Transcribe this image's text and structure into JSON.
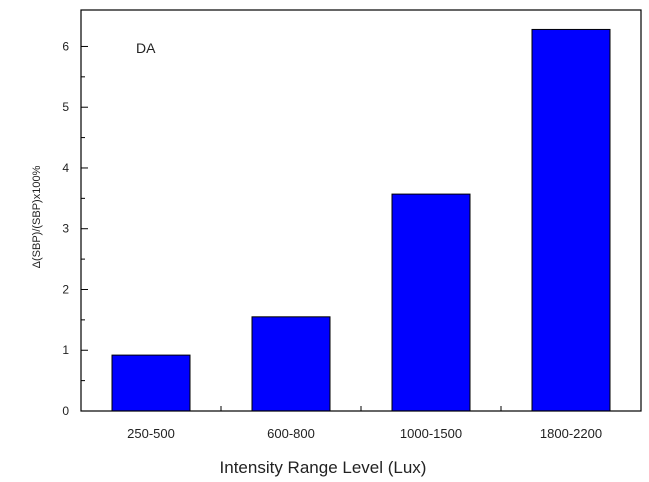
{
  "chart_data": {
    "type": "bar",
    "annotation": "DA",
    "categories": [
      "250-500",
      "600-800",
      "1000-1500",
      "1800-2200"
    ],
    "values": [
      0.92,
      1.55,
      3.57,
      6.28
    ],
    "xlabel": "Intensity Range Level (Lux)",
    "ylabel": "Δ(SBP)/(SBP)x100%",
    "ylim": [
      0,
      6.6
    ],
    "yticks": [
      0,
      1,
      2,
      3,
      4,
      5,
      6
    ],
    "grid": false,
    "legend": "none",
    "colors": {
      "bar_fill": "#0000ff",
      "bar_stroke": "#000000",
      "axis": "#000000",
      "background": "#ffffff"
    }
  }
}
